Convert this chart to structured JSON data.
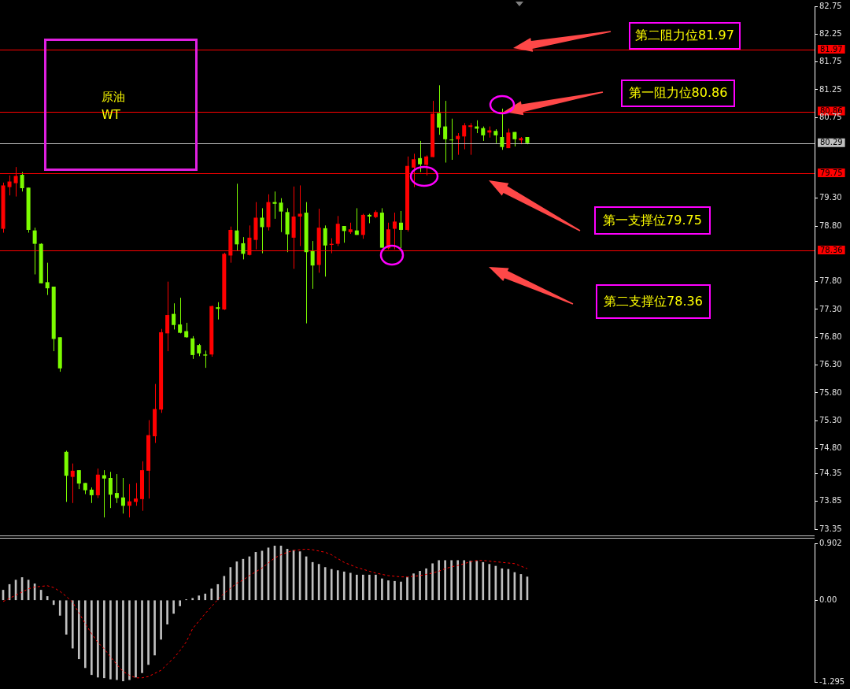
{
  "chart_data": [
    {
      "type": "candlestick",
      "title": "原油",
      "subtitle": "WT",
      "categories": [
        null,
        null,
        null,
        null,
        null,
        null,
        null,
        null,
        null,
        null,
        null,
        null,
        null,
        null,
        null,
        null,
        null,
        null,
        null,
        null,
        null,
        null,
        null,
        null,
        null,
        null,
        null,
        null,
        null,
        null,
        null,
        null,
        null,
        null,
        null,
        null,
        null,
        null,
        null,
        null,
        null,
        null,
        null,
        null,
        null,
        null,
        null,
        null,
        null,
        null,
        null,
        null,
        null,
        null,
        null,
        null,
        null,
        null,
        null,
        null,
        null,
        null,
        null,
        null,
        null,
        null,
        null,
        null,
        null,
        null,
        null,
        null,
        null,
        null,
        null,
        null,
        null,
        null,
        null,
        null,
        null,
        null,
        null,
        null,
        null,
        null,
        null,
        null,
        null,
        null,
        null,
        null,
        null,
        null,
        null,
        null,
        null,
        null,
        null,
        null,
        null,
        null,
        null,
        null,
        null,
        null,
        null,
        null,
        null,
        null,
        null,
        null,
        null,
        null,
        null,
        null,
        null,
        null,
        null,
        null,
        null,
        null,
        null,
        null,
        null,
        null,
        null,
        null,
        null
      ],
      "ohlc": [
        [
          78.75,
          79.58,
          78.68,
          79.53
        ],
        [
          79.5,
          79.71,
          79.35,
          79.6
        ],
        [
          79.57,
          79.86,
          79.33,
          79.7
        ],
        [
          79.72,
          79.77,
          79.42,
          79.48
        ],
        [
          79.49,
          79.49,
          78.68,
          78.73
        ],
        [
          78.72,
          78.77,
          77.93,
          78.48
        ],
        [
          78.48,
          78.49,
          77.77,
          77.77
        ],
        [
          77.79,
          78.14,
          77.56,
          77.68
        ],
        [
          77.71,
          77.71,
          76.55,
          76.77
        ],
        [
          76.8,
          76.8,
          76.18,
          76.24
        ],
        [
          74.74,
          74.76,
          73.84,
          74.31
        ],
        [
          74.29,
          74.53,
          73.82,
          74.4
        ],
        [
          74.41,
          74.41,
          74.07,
          74.17
        ],
        [
          74.18,
          74.18,
          73.98,
          74.05
        ],
        [
          74.06,
          74.1,
          73.82,
          73.96
        ],
        [
          73.96,
          74.44,
          73.91,
          74.33
        ],
        [
          74.32,
          74.41,
          73.56,
          74.26
        ],
        [
          74.27,
          74.38,
          73.73,
          73.97
        ],
        [
          74.0,
          74.34,
          73.82,
          73.91
        ],
        [
          73.92,
          74.27,
          73.63,
          73.77
        ],
        [
          73.77,
          74.16,
          73.56,
          73.85
        ],
        [
          73.84,
          74.18,
          73.77,
          73.9
        ],
        [
          73.89,
          74.57,
          73.68,
          74.41
        ],
        [
          74.4,
          75.31,
          73.9,
          75.04
        ],
        [
          75.02,
          75.96,
          74.9,
          75.51
        ],
        [
          75.5,
          76.95,
          75.44,
          76.89
        ],
        [
          76.87,
          77.8,
          76.55,
          77.2
        ],
        [
          77.22,
          77.41,
          76.94,
          77.02
        ],
        [
          77.03,
          77.51,
          76.87,
          76.88
        ],
        [
          76.91,
          77.06,
          76.79,
          76.8
        ],
        [
          76.78,
          76.82,
          76.41,
          76.48
        ],
        [
          76.66,
          76.68,
          76.46,
          76.51
        ],
        [
          76.49,
          76.56,
          76.25,
          76.47
        ],
        [
          76.49,
          77.37,
          76.45,
          77.36
        ],
        [
          77.34,
          77.43,
          77.12,
          77.31
        ],
        [
          77.3,
          78.32,
          77.29,
          78.3
        ],
        [
          78.27,
          78.79,
          78.14,
          78.73
        ],
        [
          78.72,
          79.56,
          78.36,
          78.47
        ],
        [
          78.49,
          78.6,
          78.2,
          78.3
        ],
        [
          78.28,
          78.81,
          78.27,
          78.59
        ],
        [
          78.55,
          79.23,
          78.38,
          78.95
        ],
        [
          78.95,
          79.12,
          78.31,
          78.78
        ],
        [
          78.78,
          79.37,
          78.72,
          79.23
        ],
        [
          79.23,
          79.42,
          78.93,
          79.2
        ],
        [
          79.22,
          79.3,
          78.69,
          79.06
        ],
        [
          79.05,
          79.12,
          78.33,
          78.65
        ],
        [
          78.59,
          79.51,
          78.03,
          78.97
        ],
        [
          78.97,
          79.53,
          78.44,
          79.02
        ],
        [
          79.04,
          79.23,
          77.05,
          78.33
        ],
        [
          78.35,
          78.53,
          77.67,
          78.09
        ],
        [
          78.1,
          79.11,
          77.96,
          78.77
        ],
        [
          78.76,
          78.81,
          77.89,
          78.45
        ],
        [
          78.46,
          78.58,
          78.31,
          78.48
        ],
        [
          78.48,
          78.98,
          78.44,
          78.84
        ],
        [
          78.8,
          78.8,
          78.5,
          78.71
        ],
        [
          78.69,
          78.86,
          78.66,
          78.74
        ],
        [
          78.72,
          79.12,
          78.64,
          78.64
        ],
        [
          78.64,
          79.02,
          78.57,
          79.0
        ],
        [
          79.0,
          79.02,
          78.85,
          78.97
        ],
        [
          78.96,
          79.08,
          78.94,
          79.05
        ],
        [
          79.04,
          79.12,
          78.41,
          78.41
        ],
        [
          78.4,
          78.86,
          78.38,
          78.74
        ],
        [
          78.75,
          79.04,
          78.38,
          78.88
        ],
        [
          78.86,
          79.07,
          78.4,
          78.73
        ],
        [
          78.73,
          80.05,
          78.7,
          79.88
        ],
        [
          79.85,
          80.1,
          79.5,
          80.0
        ],
        [
          80.02,
          80.33,
          79.77,
          79.91
        ],
        [
          79.9,
          80.07,
          79.71,
          80.05
        ],
        [
          80.04,
          81.05,
          80.04,
          80.82
        ],
        [
          80.83,
          81.33,
          80.44,
          80.57
        ],
        [
          80.59,
          81.05,
          79.94,
          80.36
        ],
        [
          80.35,
          80.73,
          79.99,
          80.34
        ],
        [
          80.36,
          80.47,
          80.08,
          80.42
        ],
        [
          80.41,
          80.65,
          80.18,
          80.61
        ],
        [
          80.58,
          80.65,
          80.08,
          80.61
        ],
        [
          80.59,
          80.7,
          80.47,
          80.55
        ],
        [
          80.56,
          80.59,
          80.33,
          80.43
        ],
        [
          80.48,
          80.59,
          80.39,
          80.52
        ],
        [
          80.51,
          80.54,
          80.29,
          80.43
        ],
        [
          80.4,
          80.91,
          80.17,
          80.22
        ],
        [
          80.2,
          80.55,
          80.2,
          80.48
        ],
        [
          80.49,
          80.49,
          80.23,
          80.36
        ],
        [
          80.34,
          80.4,
          80.27,
          80.38
        ],
        [
          80.4,
          80.4,
          80.27,
          80.29
        ],
        null,
        null,
        null,
        null,
        null,
        null,
        null,
        null,
        null,
        null,
        null,
        null,
        null,
        null,
        null,
        null,
        null,
        null,
        null,
        null,
        null,
        null,
        null,
        null,
        null,
        null,
        null,
        null,
        null,
        null,
        null,
        null,
        null,
        null,
        null,
        null,
        null,
        null,
        null,
        null,
        null,
        null,
        null,
        null,
        null
      ],
      "colors": [
        "#ff0000",
        "#ff0000",
        "#ff0000",
        "#7cfc00",
        "#7cfc00",
        "#7cfc00",
        "#7cfc00",
        "#7cfc00",
        "#7cfc00",
        "#7cfc00",
        "#7cfc00",
        "#ff0000",
        "#7cfc00",
        "#7cfc00",
        "#7cfc00",
        "#ff0000",
        "#7cfc00",
        "#7cfc00",
        "#7cfc00",
        "#7cfc00",
        "#ff0000",
        "#ff0000",
        "#ff0000",
        "#ff0000",
        "#ff0000",
        "#ff0000",
        "#ff0000",
        "#7cfc00",
        "#7cfc00",
        "#7cfc00",
        "#7cfc00",
        "#7cfc00",
        "#7cfc00",
        "#ff0000",
        "#7cfc00",
        "#ff0000",
        "#ff0000",
        "#7cfc00",
        "#7cfc00",
        "#ff0000",
        "#ff0000",
        "#7cfc00",
        "#ff0000",
        "#7cfc00",
        "#7cfc00",
        "#7cfc00",
        "#ff0000",
        "#ff0000",
        "#7cfc00",
        "#7cfc00",
        "#ff0000",
        "#7cfc00",
        "#ff0000",
        "#ff0000",
        "#7cfc00",
        "#ff0000",
        "#7cfc00",
        "#ff0000",
        "#7cfc00",
        "#ff0000",
        "#7cfc00",
        "#ff0000",
        "#ff0000",
        "#7cfc00",
        "#ff0000",
        "#ff0000",
        "#7cfc00",
        "#ff0000",
        "#ff0000",
        "#7cfc00",
        "#7cfc00",
        "#7cfc00",
        "#ff0000",
        "#ff0000",
        "#ff0000",
        "#7cfc00",
        "#7cfc00",
        "#ff0000",
        "#7cfc00",
        "#7cfc00",
        "#ff0000",
        "#7cfc00",
        "#ff0000",
        "#7cfc00",
        null,
        null,
        null,
        null,
        null,
        null,
        null,
        null,
        null,
        null,
        null,
        null,
        null,
        null,
        null,
        null,
        null,
        null,
        null,
        null,
        null,
        null,
        null,
        null,
        null,
        null,
        null,
        null,
        null,
        null,
        null,
        null,
        null,
        null,
        null,
        null,
        null,
        null,
        null,
        null,
        null,
        null,
        null,
        null,
        null
      ],
      "ylim": [
        73.35,
        82.75
      ],
      "yticks": [
        82.75,
        82.25,
        81.75,
        81.25,
        80.75,
        {
          "value": 79.3,
          "label": "79.30"
        },
        {
          "value": 78.8,
          "label": "78.80"
        },
        {
          "value": 77.8,
          "label": "77.80"
        },
        {
          "value": 77.3,
          "label": "77.30"
        },
        {
          "value": 76.8,
          "label": "76.80"
        },
        {
          "value": 76.3,
          "label": "76.30"
        },
        {
          "value": 75.8,
          "label": "75.80"
        },
        {
          "value": 75.3,
          "label": "75.30"
        },
        {
          "value": 74.8,
          "label": "74.80"
        },
        74.35,
        73.85,
        73.35
      ],
      "ref_lines": [
        {
          "axis": "y",
          "value": 81.97,
          "label": "81.97",
          "color": "#ff0000"
        },
        {
          "axis": "y",
          "value": 80.86,
          "label": "80.86",
          "color": "#ff0000"
        },
        {
          "axis": "y",
          "value": 80.29,
          "label": "80.29",
          "color": "#c0c0c0"
        },
        {
          "axis": "y",
          "value": 79.75,
          "label": "79.75",
          "color": "#ff0000"
        },
        {
          "axis": "y",
          "value": 78.36,
          "label": "78.36",
          "color": "#ff0000"
        }
      ],
      "annotations": [
        "第二阻力位81.97",
        "第一阻力位80.86",
        "第一支撑位79.75",
        "第二支撑位78.36"
      ],
      "tick_labels": "y"
    },
    {
      "type": "bar",
      "categories": [
        null,
        null,
        null,
        null,
        null,
        null,
        null,
        null,
        null,
        null,
        null,
        null,
        null,
        null,
        null,
        null,
        null,
        null,
        null,
        null,
        null,
        null,
        null,
        null,
        null,
        null,
        null,
        null,
        null,
        null,
        null,
        null,
        null,
        null,
        null,
        null,
        null,
        null,
        null,
        null,
        null,
        null,
        null,
        null,
        null,
        null,
        null,
        null,
        null,
        null,
        null,
        null,
        null,
        null,
        null,
        null,
        null,
        null,
        null,
        null,
        null,
        null,
        null,
        null,
        null,
        null,
        null,
        null,
        null,
        null,
        null,
        null,
        null,
        null,
        null,
        null,
        null,
        null,
        null,
        null,
        null,
        null,
        null,
        null,
        null,
        null,
        null,
        null,
        null,
        null,
        null,
        null,
        null,
        null,
        null,
        null,
        null,
        null,
        null,
        null,
        null,
        null,
        null,
        null,
        null,
        null,
        null,
        null,
        null,
        null,
        null,
        null,
        null,
        null,
        null,
        null,
        null,
        null,
        null,
        null,
        null,
        null,
        null,
        null,
        null,
        null,
        null,
        null,
        null
      ],
      "series": [
        {
          "type": "bar",
          "color": "#c0c0c0",
          "values": [
            0.16,
            0.25,
            0.32,
            0.36,
            0.32,
            0.26,
            0.16,
            0.06,
            -0.07,
            -0.24,
            -0.54,
            -0.76,
            -0.93,
            -1.07,
            -1.18,
            -1.22,
            -1.23,
            -1.25,
            -1.26,
            -1.28,
            -1.26,
            -1.22,
            -1.15,
            -1.02,
            -0.87,
            -0.62,
            -0.38,
            -0.21,
            -0.09,
            0.01,
            0.03,
            0.07,
            0.1,
            0.18,
            0.25,
            0.38,
            0.52,
            0.61,
            0.65,
            0.69,
            0.76,
            0.78,
            0.83,
            0.86,
            0.86,
            0.81,
            0.79,
            0.77,
            0.69,
            0.6,
            0.57,
            0.52,
            0.49,
            0.47,
            0.45,
            0.43,
            0.4,
            0.4,
            0.4,
            0.4,
            0.34,
            0.31,
            0.3,
            0.29,
            0.36,
            0.42,
            0.46,
            0.5,
            0.58,
            0.63,
            0.63,
            0.63,
            0.63,
            0.63,
            0.62,
            0.62,
            0.6,
            0.57,
            0.54,
            0.5,
            0.49,
            0.44,
            0.41,
            0.37,
            null,
            null,
            null,
            null,
            null,
            null,
            null,
            null,
            null,
            null,
            null,
            null,
            null,
            null,
            null,
            null,
            null,
            null,
            null,
            null,
            null,
            null,
            null,
            null,
            null,
            null,
            null,
            null,
            null,
            null,
            null,
            null,
            null,
            null,
            null,
            null,
            null,
            null,
            null,
            null,
            null,
            null,
            null,
            null,
            null
          ]
        },
        {
          "type": "line",
          "color": "#ff0000",
          "line_style": "dashed",
          "marker": "none",
          "values": [
            -0.02,
            0.03,
            0.08,
            0.13,
            0.18,
            0.21,
            0.22,
            0.23,
            0.2,
            0.14,
            0.06,
            -0.03,
            -0.2,
            -0.37,
            -0.53,
            -0.67,
            -0.77,
            -0.9,
            -1.02,
            -1.13,
            -1.19,
            -1.23,
            -1.23,
            -1.21,
            -1.16,
            -1.11,
            -1.01,
            -0.92,
            -0.8,
            -0.66,
            -0.45,
            -0.33,
            -0.21,
            -0.1,
            0.01,
            0.11,
            0.19,
            0.27,
            0.32,
            0.39,
            0.45,
            0.51,
            0.59,
            0.67,
            0.72,
            0.76,
            0.79,
            0.8,
            0.81,
            0.8,
            0.78,
            0.76,
            0.72,
            0.66,
            0.6,
            0.56,
            0.52,
            0.49,
            0.46,
            0.43,
            0.41,
            0.39,
            0.38,
            0.37,
            0.37,
            0.38,
            0.39,
            0.41,
            0.43,
            0.46,
            0.5,
            0.53,
            0.55,
            0.58,
            0.61,
            0.63,
            0.63,
            0.62,
            0.61,
            0.6,
            0.59,
            0.58,
            0.54,
            0.5,
            null,
            null,
            null,
            null,
            null,
            null,
            null,
            null,
            null,
            null,
            null,
            null,
            null,
            null,
            null,
            null,
            null,
            null,
            null,
            null,
            null,
            null,
            null,
            null,
            null,
            null,
            null,
            null,
            null,
            null,
            null,
            null,
            null,
            null,
            null,
            null,
            null,
            null,
            null,
            null,
            null,
            null,
            null,
            null,
            null
          ]
        }
      ],
      "ylim": [
        -1.295,
        0.902
      ],
      "yticks": [
        0.902,
        {
          "value": 0,
          "label": "0.00"
        },
        -1.295
      ],
      "tick_labels": "y"
    }
  ]
}
